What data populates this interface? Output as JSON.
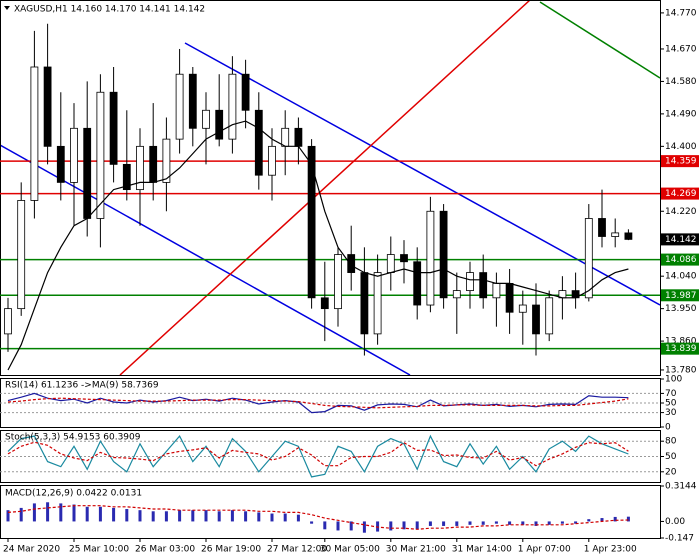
{
  "chart_data": [
    {
      "type": "candlestick",
      "title": "XAGUSD,H1  14.160 14.170 14.141 14.142",
      "categories": [
        "24 Mar 2020",
        null,
        null,
        null,
        null,
        "25 Mar 10:00",
        null,
        null,
        null,
        null,
        "26 Mar 03:00",
        null,
        null,
        null,
        null,
        "26 Mar 19:00",
        null,
        null,
        null,
        null,
        "27 Mar 12:00",
        null,
        null,
        null,
        "30 Mar 05:00",
        null,
        null,
        null,
        null,
        "30 Mar 21:00",
        null,
        null,
        null,
        null,
        "31 Mar 14:00",
        null,
        null,
        null,
        null,
        "1 Apr 07:00",
        null,
        null,
        null,
        null,
        "1 Apr 23:00",
        null,
        null,
        null
      ],
      "open": [
        13.88,
        13.95,
        14.25,
        14.62,
        14.4,
        14.3,
        14.45,
        14.2,
        14.55,
        14.35,
        14.28,
        14.4,
        14.3,
        14.42,
        14.6,
        14.45,
        14.5,
        14.42,
        14.6,
        14.5,
        14.32,
        14.4,
        14.45,
        14.4,
        13.98,
        13.95,
        14.1,
        14.05,
        13.88,
        14.05,
        14.1,
        14.08,
        13.96,
        14.22,
        13.98,
        14.0,
        14.05,
        13.98,
        14.02,
        13.94,
        13.96,
        13.88,
        13.98,
        14.0,
        13.98,
        14.2,
        14.15,
        14.16
      ],
      "high": [
        13.98,
        14.3,
        14.72,
        14.74,
        14.55,
        14.52,
        14.58,
        14.6,
        14.62,
        14.5,
        14.45,
        14.52,
        14.48,
        14.67,
        14.62,
        14.55,
        14.6,
        14.65,
        14.64,
        14.55,
        14.45,
        14.5,
        14.48,
        14.42,
        14.08,
        14.12,
        14.18,
        14.12,
        14.1,
        14.15,
        14.14,
        14.12,
        14.26,
        14.24,
        14.05,
        14.08,
        14.1,
        14.05,
        14.06,
        14.0,
        14.02,
        14.0,
        14.04,
        14.05,
        14.24,
        14.28,
        14.2,
        14.17
      ],
      "low": [
        13.83,
        13.93,
        14.2,
        14.35,
        14.25,
        14.18,
        14.15,
        14.12,
        14.3,
        14.25,
        14.18,
        14.25,
        14.22,
        14.38,
        14.4,
        14.35,
        14.4,
        14.38,
        14.45,
        14.28,
        14.25,
        14.32,
        14.35,
        13.95,
        13.86,
        13.9,
        14.0,
        13.82,
        13.85,
        14.0,
        14.02,
        13.92,
        13.94,
        13.95,
        13.88,
        13.95,
        13.95,
        13.9,
        13.88,
        13.85,
        13.82,
        13.86,
        13.92,
        13.95,
        13.97,
        14.12,
        14.12,
        14.14
      ],
      "close": [
        13.95,
        14.25,
        14.62,
        14.4,
        14.3,
        14.45,
        14.2,
        14.55,
        14.35,
        14.28,
        14.4,
        14.3,
        14.42,
        14.6,
        14.45,
        14.5,
        14.42,
        14.6,
        14.5,
        14.32,
        14.4,
        14.45,
        14.4,
        13.98,
        13.95,
        14.1,
        14.05,
        13.88,
        14.05,
        14.1,
        14.08,
        13.96,
        14.22,
        13.98,
        14.0,
        14.05,
        13.98,
        14.02,
        13.94,
        13.96,
        13.88,
        13.98,
        14.0,
        13.98,
        14.2,
        14.15,
        14.16,
        14.142
      ],
      "ma": {
        "color": "#000000",
        "values": [
          13.78,
          13.85,
          13.95,
          14.05,
          14.12,
          14.18,
          14.2,
          14.24,
          14.28,
          14.29,
          14.3,
          14.3,
          14.31,
          14.34,
          14.38,
          14.42,
          14.44,
          14.46,
          14.47,
          14.45,
          14.42,
          14.4,
          14.4,
          14.35,
          14.22,
          14.12,
          14.07,
          14.05,
          14.04,
          14.05,
          14.06,
          14.05,
          14.05,
          14.06,
          14.04,
          14.03,
          14.03,
          14.02,
          14.02,
          14.01,
          14.0,
          13.99,
          13.98,
          13.98,
          14.0,
          14.03,
          14.05,
          14.06
        ]
      },
      "levels": [
        {
          "value": 14.359,
          "color": "#e00000"
        },
        {
          "value": 14.269,
          "color": "#e00000"
        },
        {
          "value": 14.086,
          "color": "#008000"
        },
        {
          "value": 13.987,
          "color": "#008000"
        },
        {
          "value": 13.839,
          "color": "#008000"
        }
      ],
      "last_price": 14.142,
      "ylim": [
        13.766,
        14.803
      ],
      "yticks": [
        {
          "value": 14.77,
          "label": "14.770"
        },
        {
          "value": 14.67,
          "label": "14.670"
        },
        {
          "value": 14.58,
          "label": "14.580"
        },
        {
          "value": 14.49,
          "label": "14.490"
        },
        {
          "value": 14.4,
          "label": "14.400"
        },
        {
          "value": 14.22,
          "label": "14.220"
        },
        {
          "value": 14.04,
          "label": "14.040"
        },
        {
          "value": 13.95,
          "label": "13.950"
        },
        {
          "value": 13.86,
          "label": "13.860"
        },
        {
          "value": 13.78,
          "label": "13.780"
        }
      ]
    },
    {
      "type": "line",
      "title": "RSI(14) 61.1236 ->MA(9) 58.7369",
      "series": [
        {
          "color": "#1a1aa0",
          "values": [
            55,
            62,
            70,
            60,
            55,
            58,
            50,
            60,
            52,
            50,
            56,
            52,
            55,
            62,
            55,
            58,
            54,
            60,
            56,
            48,
            52,
            55,
            52,
            30,
            32,
            45,
            44,
            35,
            46,
            48,
            47,
            42,
            56,
            44,
            46,
            48,
            45,
            47,
            43,
            45,
            42,
            47,
            48,
            47,
            65,
            62,
            62,
            61.1236
          ]
        },
        {
          "color": "#d00000",
          "values": [
            52,
            54,
            57,
            59,
            60,
            59,
            58,
            57,
            56,
            55,
            54,
            54,
            54,
            55,
            56,
            56,
            56,
            57,
            57,
            56,
            55,
            54,
            53,
            49,
            45,
            43,
            42,
            41,
            40,
            41,
            42,
            43,
            45,
            45,
            46,
            46,
            45,
            45,
            45,
            45,
            44,
            44,
            45,
            45,
            48,
            51,
            54,
            58.7369
          ]
        }
      ],
      "ylim": [
        0,
        100
      ],
      "yticks": [
        0,
        30,
        50,
        70,
        100
      ]
    },
    {
      "type": "line",
      "title": "Stoch(5,3,3) 54.9153 60.3909",
      "series": [
        {
          "color": "#1a8aa0",
          "values": [
            60,
            85,
            90,
            40,
            30,
            70,
            25,
            80,
            40,
            20,
            75,
            30,
            60,
            90,
            40,
            70,
            30,
            85,
            60,
            20,
            50,
            80,
            70,
            10,
            15,
            70,
            60,
            20,
            70,
            85,
            75,
            25,
            90,
            40,
            30,
            75,
            35,
            70,
            25,
            50,
            20,
            65,
            80,
            60,
            90,
            75,
            65,
            54.9153
          ]
        },
        {
          "color": "#d00000",
          "values": [
            55,
            70,
            78,
            72,
            55,
            47,
            42,
            58,
            48,
            47,
            45,
            42,
            55,
            60,
            63,
            67,
            47,
            62,
            58,
            55,
            43,
            50,
            67,
            53,
            32,
            32,
            48,
            50,
            50,
            58,
            77,
            62,
            63,
            52,
            53,
            48,
            47,
            60,
            43,
            48,
            32,
            45,
            55,
            68,
            77,
            75,
            77,
            60.3909
          ]
        }
      ],
      "ylim": [
        0,
        100
      ],
      "yticks": [
        20,
        50,
        80
      ]
    },
    {
      "type": "macd",
      "title": "MACD(12,26,9) 0.0422 0.0131",
      "histogram": {
        "color": "#2a2ab0",
        "values": [
          0.1,
          0.12,
          0.16,
          0.17,
          0.16,
          0.15,
          0.13,
          0.13,
          0.12,
          0.11,
          0.1,
          0.09,
          0.09,
          0.1,
          0.1,
          0.1,
          0.09,
          0.1,
          0.09,
          0.08,
          0.07,
          0.07,
          0.06,
          -0.02,
          -0.07,
          -0.08,
          -0.08,
          -0.1,
          -0.09,
          -0.08,
          -0.07,
          -0.07,
          -0.04,
          -0.04,
          -0.04,
          -0.03,
          -0.03,
          -0.02,
          -0.03,
          -0.03,
          -0.04,
          -0.03,
          -0.02,
          -0.02,
          0.02,
          0.03,
          0.04,
          0.0422
        ]
      },
      "signal": {
        "color": "#d00000",
        "values": [
          0.08,
          0.09,
          0.11,
          0.12,
          0.13,
          0.14,
          0.14,
          0.14,
          0.13,
          0.13,
          0.12,
          0.11,
          0.11,
          0.1,
          0.1,
          0.1,
          0.1,
          0.1,
          0.1,
          0.09,
          0.09,
          0.08,
          0.08,
          0.06,
          0.03,
          0.01,
          -0.01,
          -0.03,
          -0.05,
          -0.06,
          -0.06,
          -0.07,
          -0.06,
          -0.06,
          -0.05,
          -0.05,
          -0.04,
          -0.04,
          -0.03,
          -0.03,
          -0.03,
          -0.03,
          -0.03,
          -0.02,
          -0.01,
          0.0,
          0.01,
          0.0131
        ]
      },
      "ylim": [
        -0.147,
        0.3144
      ],
      "yticks": [
        0.3144,
        {
          "value": 0,
          "label": "0.00"
        },
        -0.147
      ]
    }
  ]
}
